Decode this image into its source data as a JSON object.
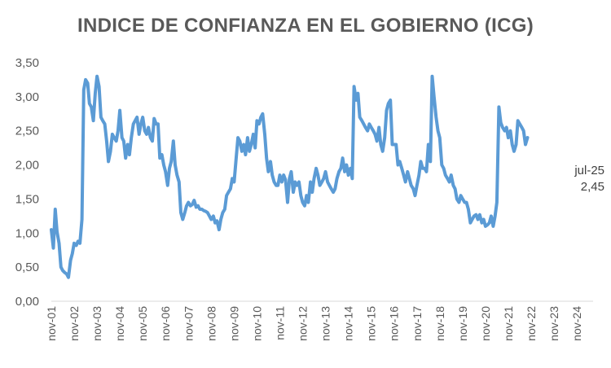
{
  "chart_data": {
    "type": "line",
    "title": "INDICE DE CONFIANZA EN EL GOBIERNO (ICG)",
    "xlabel": "",
    "ylabel": "",
    "ylim": [
      0,
      3.5
    ],
    "y_ticks": [
      "0,00",
      "0,50",
      "1,00",
      "1,50",
      "2,00",
      "2,50",
      "3,00",
      "3,50"
    ],
    "x_tick_labels": [
      "nov-01",
      "nov-02",
      "nov-03",
      "nov-04",
      "nov-05",
      "nov-06",
      "nov-07",
      "nov-08",
      "nov-09",
      "nov-10",
      "nov-11",
      "nov-12",
      "nov-13",
      "nov-14",
      "nov-15",
      "nov-16",
      "nov-17",
      "nov-18",
      "nov-19",
      "nov-20",
      "nov-21",
      "nov-22",
      "nov-23",
      "nov-24"
    ],
    "x_range_years": [
      2001.83,
      2025.54
    ],
    "line_color": "#5B9BD5",
    "annotation": {
      "date": "jul-25",
      "value": "2,45"
    },
    "series": [
      {
        "name": "ICG",
        "points": [
          [
            2001.83,
            1.05
          ],
          [
            2001.92,
            0.78
          ],
          [
            2002.0,
            1.35
          ],
          [
            2002.08,
            1.02
          ],
          [
            2002.17,
            0.85
          ],
          [
            2002.25,
            0.5
          ],
          [
            2002.33,
            0.45
          ],
          [
            2002.42,
            0.42
          ],
          [
            2002.5,
            0.4
          ],
          [
            2002.58,
            0.35
          ],
          [
            2002.67,
            0.6
          ],
          [
            2002.75,
            0.7
          ],
          [
            2002.83,
            0.85
          ],
          [
            2002.92,
            0.82
          ],
          [
            2003.0,
            0.88
          ],
          [
            2003.08,
            0.85
          ],
          [
            2003.17,
            1.2
          ],
          [
            2003.25,
            3.1
          ],
          [
            2003.33,
            3.25
          ],
          [
            2003.42,
            3.2
          ],
          [
            2003.5,
            2.9
          ],
          [
            2003.58,
            2.85
          ],
          [
            2003.67,
            2.65
          ],
          [
            2003.75,
            3.05
          ],
          [
            2003.83,
            3.3
          ],
          [
            2003.92,
            3.15
          ],
          [
            2004.0,
            2.7
          ],
          [
            2004.08,
            2.65
          ],
          [
            2004.17,
            2.6
          ],
          [
            2004.25,
            2.35
          ],
          [
            2004.33,
            2.05
          ],
          [
            2004.42,
            2.2
          ],
          [
            2004.5,
            2.45
          ],
          [
            2004.58,
            2.4
          ],
          [
            2004.67,
            2.35
          ],
          [
            2004.75,
            2.5
          ],
          [
            2004.83,
            2.8
          ],
          [
            2004.92,
            2.4
          ],
          [
            2005.0,
            2.35
          ],
          [
            2005.08,
            2.1
          ],
          [
            2005.17,
            2.3
          ],
          [
            2005.25,
            2.15
          ],
          [
            2005.33,
            2.4
          ],
          [
            2005.42,
            2.6
          ],
          [
            2005.5,
            2.65
          ],
          [
            2005.58,
            2.7
          ],
          [
            2005.67,
            2.45
          ],
          [
            2005.75,
            2.6
          ],
          [
            2005.83,
            2.7
          ],
          [
            2005.92,
            2.5
          ],
          [
            2006.0,
            2.45
          ],
          [
            2006.08,
            2.55
          ],
          [
            2006.17,
            2.4
          ],
          [
            2006.25,
            2.35
          ],
          [
            2006.33,
            2.68
          ],
          [
            2006.42,
            2.6
          ],
          [
            2006.5,
            2.6
          ],
          [
            2006.58,
            2.1
          ],
          [
            2006.67,
            2.15
          ],
          [
            2006.75,
            2.0
          ],
          [
            2006.83,
            1.9
          ],
          [
            2006.92,
            1.7
          ],
          [
            2007.0,
            1.95
          ],
          [
            2007.08,
            2.05
          ],
          [
            2007.17,
            2.35
          ],
          [
            2007.25,
            2.0
          ],
          [
            2007.33,
            1.85
          ],
          [
            2007.42,
            1.75
          ],
          [
            2007.5,
            1.3
          ],
          [
            2007.58,
            1.2
          ],
          [
            2007.67,
            1.3
          ],
          [
            2007.75,
            1.4
          ],
          [
            2007.83,
            1.45
          ],
          [
            2007.92,
            1.4
          ],
          [
            2008.0,
            1.42
          ],
          [
            2008.08,
            1.48
          ],
          [
            2008.17,
            1.38
          ],
          [
            2008.25,
            1.4
          ],
          [
            2008.33,
            1.35
          ],
          [
            2008.42,
            1.35
          ],
          [
            2008.5,
            1.33
          ],
          [
            2008.58,
            1.32
          ],
          [
            2008.67,
            1.3
          ],
          [
            2008.75,
            1.25
          ],
          [
            2008.83,
            1.2
          ],
          [
            2008.92,
            1.25
          ],
          [
            2009.0,
            1.15
          ],
          [
            2009.08,
            1.18
          ],
          [
            2009.17,
            1.05
          ],
          [
            2009.25,
            1.2
          ],
          [
            2009.33,
            1.3
          ],
          [
            2009.42,
            1.35
          ],
          [
            2009.5,
            1.55
          ],
          [
            2009.58,
            1.6
          ],
          [
            2009.67,
            1.65
          ],
          [
            2009.75,
            1.8
          ],
          [
            2009.83,
            1.75
          ],
          [
            2009.92,
            2.1
          ],
          [
            2010.0,
            2.4
          ],
          [
            2010.08,
            2.35
          ],
          [
            2010.17,
            2.2
          ],
          [
            2010.25,
            2.3
          ],
          [
            2010.33,
            2.15
          ],
          [
            2010.42,
            2.4
          ],
          [
            2010.5,
            2.2
          ],
          [
            2010.58,
            2.3
          ],
          [
            2010.67,
            2.45
          ],
          [
            2010.75,
            2.25
          ],
          [
            2010.83,
            2.65
          ],
          [
            2010.92,
            2.6
          ],
          [
            2011.0,
            2.7
          ],
          [
            2011.08,
            2.75
          ],
          [
            2011.17,
            2.45
          ],
          [
            2011.25,
            2.1
          ],
          [
            2011.33,
            1.9
          ],
          [
            2011.42,
            2.05
          ],
          [
            2011.5,
            1.85
          ],
          [
            2011.58,
            1.75
          ],
          [
            2011.67,
            1.7
          ],
          [
            2011.75,
            1.7
          ],
          [
            2011.83,
            1.85
          ],
          [
            2011.92,
            1.75
          ],
          [
            2012.0,
            1.85
          ],
          [
            2012.08,
            1.78
          ],
          [
            2012.17,
            1.45
          ],
          [
            2012.25,
            1.8
          ],
          [
            2012.33,
            1.9
          ],
          [
            2012.42,
            1.6
          ],
          [
            2012.5,
            1.75
          ],
          [
            2012.58,
            1.7
          ],
          [
            2012.67,
            1.75
          ],
          [
            2012.75,
            1.55
          ],
          [
            2012.83,
            1.45
          ],
          [
            2012.92,
            1.4
          ],
          [
            2013.0,
            1.55
          ],
          [
            2013.08,
            1.45
          ],
          [
            2013.17,
            1.75
          ],
          [
            2013.25,
            1.6
          ],
          [
            2013.33,
            1.8
          ],
          [
            2013.42,
            1.95
          ],
          [
            2013.5,
            1.85
          ],
          [
            2013.58,
            1.7
          ],
          [
            2013.67,
            1.75
          ],
          [
            2013.75,
            1.8
          ],
          [
            2013.83,
            1.9
          ],
          [
            2013.92,
            1.75
          ],
          [
            2014.0,
            1.7
          ],
          [
            2014.08,
            1.65
          ],
          [
            2014.17,
            1.6
          ],
          [
            2014.25,
            1.65
          ],
          [
            2014.33,
            1.8
          ],
          [
            2014.42,
            1.9
          ],
          [
            2014.5,
            1.95
          ],
          [
            2014.58,
            2.1
          ],
          [
            2014.67,
            1.9
          ],
          [
            2014.75,
            2.0
          ],
          [
            2014.83,
            1.85
          ],
          [
            2014.92,
            1.95
          ],
          [
            2015.0,
            1.8
          ],
          [
            2015.08,
            3.15
          ],
          [
            2015.17,
            2.95
          ],
          [
            2015.25,
            3.05
          ],
          [
            2015.33,
            2.7
          ],
          [
            2015.42,
            2.65
          ],
          [
            2015.5,
            2.6
          ],
          [
            2015.58,
            2.55
          ],
          [
            2015.67,
            2.5
          ],
          [
            2015.75,
            2.6
          ],
          [
            2015.83,
            2.55
          ],
          [
            2015.92,
            2.5
          ],
          [
            2016.0,
            2.45
          ],
          [
            2016.08,
            2.35
          ],
          [
            2016.17,
            2.55
          ],
          [
            2016.25,
            2.3
          ],
          [
            2016.33,
            2.2
          ],
          [
            2016.42,
            2.4
          ],
          [
            2016.5,
            2.8
          ],
          [
            2016.58,
            2.9
          ],
          [
            2016.67,
            2.95
          ],
          [
            2016.75,
            2.3
          ],
          [
            2016.83,
            2.3
          ],
          [
            2016.92,
            2.3
          ],
          [
            2017.0,
            2.0
          ],
          [
            2017.08,
            2.05
          ],
          [
            2017.17,
            1.95
          ],
          [
            2017.25,
            1.85
          ],
          [
            2017.33,
            1.75
          ],
          [
            2017.42,
            1.9
          ],
          [
            2017.5,
            1.8
          ],
          [
            2017.58,
            1.7
          ],
          [
            2017.67,
            1.65
          ],
          [
            2017.75,
            1.55
          ],
          [
            2017.83,
            1.7
          ],
          [
            2017.92,
            1.85
          ],
          [
            2018.0,
            2.05
          ],
          [
            2018.08,
            1.95
          ],
          [
            2018.17,
            1.95
          ],
          [
            2018.25,
            1.9
          ],
          [
            2018.33,
            2.3
          ],
          [
            2018.42,
            2.05
          ],
          [
            2018.5,
            3.3
          ],
          [
            2018.58,
            3.0
          ],
          [
            2018.67,
            2.7
          ],
          [
            2018.75,
            2.5
          ],
          [
            2018.83,
            2.4
          ],
          [
            2018.92,
            2.0
          ],
          [
            2019.0,
            1.95
          ],
          [
            2019.08,
            1.85
          ],
          [
            2019.17,
            1.8
          ],
          [
            2019.25,
            1.75
          ],
          [
            2019.33,
            1.85
          ],
          [
            2019.42,
            1.7
          ],
          [
            2019.5,
            1.65
          ],
          [
            2019.58,
            1.5
          ],
          [
            2019.67,
            1.45
          ],
          [
            2019.75,
            1.55
          ],
          [
            2019.83,
            1.5
          ],
          [
            2019.92,
            1.45
          ],
          [
            2020.0,
            1.45
          ],
          [
            2020.08,
            1.35
          ],
          [
            2020.17,
            1.15
          ],
          [
            2020.25,
            1.2
          ],
          [
            2020.33,
            1.25
          ],
          [
            2020.42,
            1.27
          ],
          [
            2020.5,
            1.2
          ],
          [
            2020.58,
            1.27
          ],
          [
            2020.67,
            1.15
          ],
          [
            2020.75,
            1.2
          ],
          [
            2020.83,
            1.1
          ],
          [
            2020.92,
            1.12
          ],
          [
            2021.0,
            1.15
          ],
          [
            2021.08,
            1.25
          ],
          [
            2021.17,
            1.1
          ],
          [
            2021.25,
            1.25
          ],
          [
            2021.33,
            1.45
          ],
          [
            2021.42,
            2.85
          ],
          [
            2021.5,
            2.62
          ],
          [
            2021.58,
            2.55
          ],
          [
            2021.67,
            2.5
          ],
          [
            2021.75,
            2.55
          ],
          [
            2021.83,
            2.4
          ],
          [
            2021.92,
            2.5
          ],
          [
            2022.0,
            2.3
          ],
          [
            2022.08,
            2.2
          ],
          [
            2022.17,
            2.3
          ],
          [
            2022.25,
            2.65
          ],
          [
            2022.33,
            2.6
          ],
          [
            2022.42,
            2.55
          ],
          [
            2022.5,
            2.5
          ],
          [
            2022.58,
            2.3
          ],
          [
            2022.67,
            2.4
          ]
        ]
      }
    ]
  }
}
